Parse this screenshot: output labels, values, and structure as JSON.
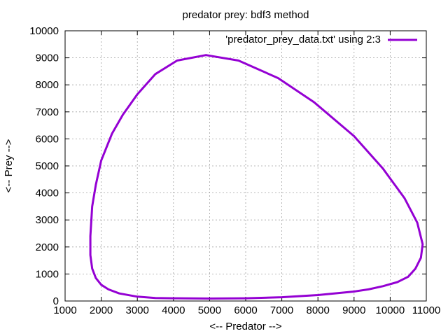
{
  "chart_data": {
    "type": "line",
    "title": "predator prey: bdf3 method",
    "xlabel": "<-- Predator -->",
    "ylabel": "<-- Prey -->",
    "xlim": [
      1000,
      11000
    ],
    "ylim": [
      0,
      10000
    ],
    "xticks": [
      1000,
      2000,
      3000,
      4000,
      5000,
      6000,
      7000,
      8000,
      9000,
      10000,
      11000
    ],
    "yticks": [
      0,
      1000,
      2000,
      3000,
      4000,
      5000,
      6000,
      7000,
      8000,
      9000,
      10000
    ],
    "grid": true,
    "legend_position": "top-right",
    "series": [
      {
        "name": "'predator_prey_data.txt' using 2:3",
        "color": "#9400d3",
        "points": [
          [
            4900,
            9100
          ],
          [
            5800,
            8900
          ],
          [
            6900,
            8250
          ],
          [
            7900,
            7350
          ],
          [
            9000,
            6100
          ],
          [
            9800,
            4900
          ],
          [
            10400,
            3800
          ],
          [
            10750,
            2900
          ],
          [
            10900,
            2100
          ],
          [
            10850,
            1600
          ],
          [
            10700,
            1200
          ],
          [
            10500,
            900
          ],
          [
            10200,
            700
          ],
          [
            9800,
            550
          ],
          [
            9400,
            430
          ],
          [
            9000,
            350
          ],
          [
            8000,
            220
          ],
          [
            7000,
            140
          ],
          [
            6000,
            100
          ],
          [
            5000,
            90
          ],
          [
            4000,
            100
          ],
          [
            3500,
            110
          ],
          [
            3000,
            160
          ],
          [
            2500,
            280
          ],
          [
            2200,
            430
          ],
          [
            2000,
            600
          ],
          [
            1850,
            850
          ],
          [
            1750,
            1200
          ],
          [
            1700,
            1700
          ],
          [
            1700,
            2400
          ],
          [
            1750,
            3500
          ],
          [
            1850,
            4300
          ],
          [
            2000,
            5200
          ],
          [
            2300,
            6200
          ],
          [
            2600,
            6900
          ],
          [
            3000,
            7650
          ],
          [
            3500,
            8400
          ],
          [
            4100,
            8900
          ],
          [
            4900,
            9100
          ]
        ]
      }
    ]
  }
}
